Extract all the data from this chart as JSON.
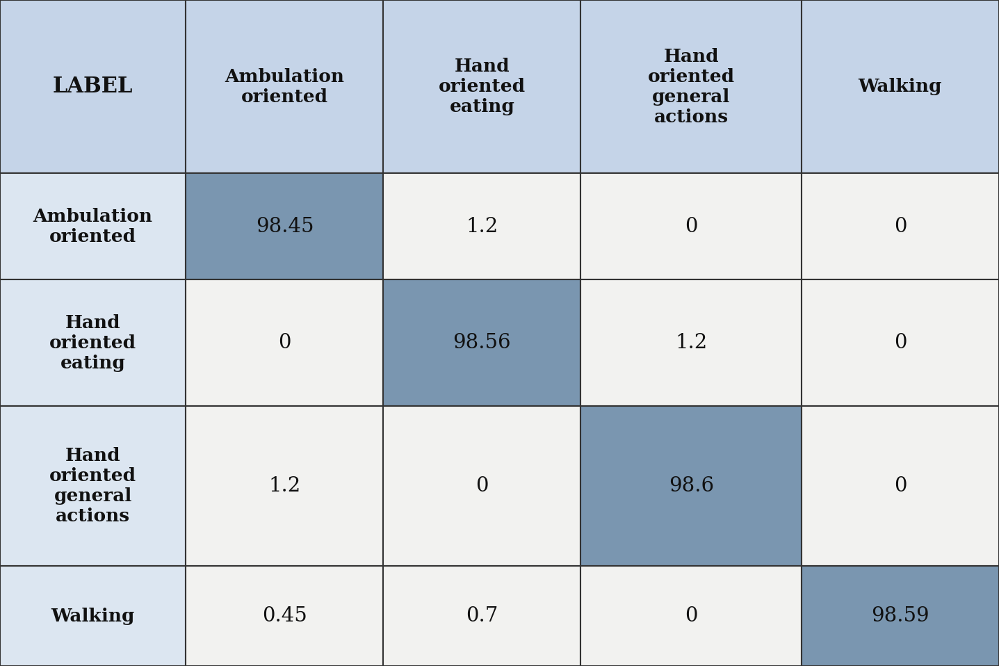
{
  "row_labels": [
    "Ambulation\noriented",
    "Hand\noriented\neating",
    "Hand\noriented\ngeneral\nactions",
    "Walking"
  ],
  "col_labels": [
    "Ambulation\noriented",
    "Hand\noriented\neating",
    "Hand\noriented\ngeneral\nactions",
    "Walking"
  ],
  "header_label": "LABEL",
  "matrix": [
    [
      98.45,
      1.2,
      0,
      0
    ],
    [
      0,
      98.56,
      1.2,
      0
    ],
    [
      1.2,
      0,
      98.6,
      0
    ],
    [
      0.45,
      0.7,
      0,
      98.59
    ]
  ],
  "diag_color": "#7a96b0",
  "header_row_color": "#c5d4e8",
  "row_label_color": "#dce6f1",
  "off_diag_color": "#f2f2f0",
  "border_color": "#333333",
  "text_color": "#111111",
  "background_color": "#ffffff",
  "row_heights": [
    2.6,
    1.6,
    1.9,
    2.4,
    1.5
  ],
  "col_widths": [
    1.6,
    1.7,
    1.7,
    1.9,
    1.7
  ]
}
